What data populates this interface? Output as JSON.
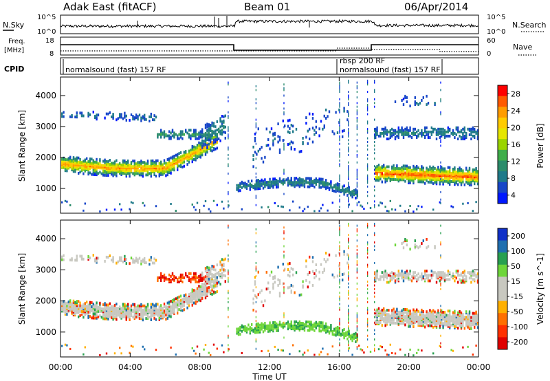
{
  "header": {
    "title": "Adak East (fitACF)",
    "beam": "Beam 01",
    "date": "06/Apr/2014"
  },
  "panels": {
    "nsky_label": "N.Sky",
    "nsky_ticks": [
      "10^5",
      "10^0"
    ],
    "nsearch_label": "N.Search",
    "nsearch_ticks": [
      "10^5",
      "10^0"
    ],
    "freq_label_1": "Freq.",
    "freq_label_2": "[MHz]",
    "freq_ticks": [
      "18",
      "8"
    ],
    "nave_label": "Nave",
    "nave_ticks": [
      "60",
      "0"
    ],
    "cpid_label": "CPID",
    "cpid_modes": [
      "normalsound (fast) 157 RF",
      "rbsp 200 RF",
      "normalsound (fast) 157 RF"
    ]
  },
  "chart_data": [
    {
      "type": "heatmap",
      "title": "",
      "xlabel": "",
      "ylabel": "Slant Range [km]",
      "x_ticks": [
        "00:00",
        "04:00",
        "08:00",
        "12:00",
        "16:00",
        "20:00",
        "00:00"
      ],
      "y_ticks": [
        "1000",
        "2000",
        "3000",
        "4000"
      ],
      "ylim": [
        200,
        4600
      ],
      "colorbar": {
        "label": "Power [dB]",
        "ticks": [
          "28",
          "24",
          "20",
          "16",
          "12",
          "8",
          "4"
        ],
        "colors": [
          "#ff0000",
          "#ff5a00",
          "#ff9c00",
          "#ffcc00",
          "#e6e600",
          "#9ad400",
          "#3fae4a",
          "#2b8c6b",
          "#1f7a8a",
          "#1746c8",
          "#0018ff"
        ]
      }
    },
    {
      "type": "heatmap",
      "title": "",
      "xlabel": "Time UT",
      "ylabel": "Slant Range [km]",
      "x_ticks": [
        "00:00",
        "04:00",
        "08:00",
        "12:00",
        "16:00",
        "20:00",
        "00:00"
      ],
      "y_ticks": [
        "1000",
        "2000",
        "3000",
        "4000"
      ],
      "ylim": [
        200,
        4600
      ],
      "colorbar": {
        "label": "Velocity [m s^-1]",
        "ticks": [
          "200",
          "100",
          "50",
          "15",
          "-15",
          "-50",
          "-100",
          "-200"
        ],
        "colors": [
          "#1030c8",
          "#1f6fb0",
          "#28a050",
          "#6ed63a",
          "#c8c8c0",
          "#c8c8c0",
          "#ffb000",
          "#ff7000",
          "#ff3000",
          "#e00000"
        ]
      }
    }
  ]
}
